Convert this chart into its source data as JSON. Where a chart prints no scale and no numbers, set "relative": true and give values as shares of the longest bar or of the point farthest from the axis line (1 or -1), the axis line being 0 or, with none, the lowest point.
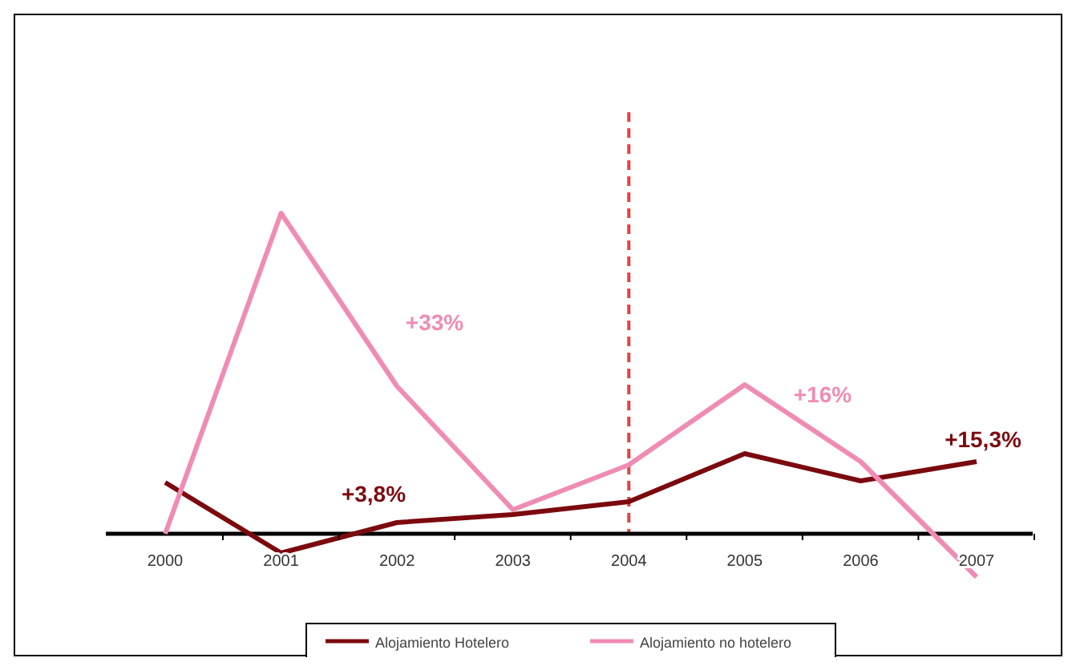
{
  "chart_data": {
    "type": "line",
    "relative": true,
    "categories": [
      "2000",
      "2001",
      "2002",
      "2003",
      "2004",
      "2005",
      "2006",
      "2007"
    ],
    "series": [
      {
        "name": "Alojamiento Hotelero",
        "color": "#7b0a0f",
        "values": [
          0.16,
          -0.06,
          0.035,
          0.06,
          0.1,
          0.25,
          0.165,
          0.225
        ]
      },
      {
        "name": "Alojamiento no hotelero",
        "color": "#f08cb4",
        "values": [
          0,
          1,
          0.46,
          0.075,
          0.215,
          0.465,
          0.225,
          -0.135
        ]
      }
    ],
    "ref_lines": [
      {
        "axis": "x",
        "value": "2004",
        "color": "#e8403c",
        "line_style": "dashed"
      }
    ],
    "annotations": [
      "+33%",
      "+16%",
      "+3,8%",
      "+15,3%"
    ],
    "legend": "bottom",
    "marker": "none",
    "line_style": "solid"
  }
}
